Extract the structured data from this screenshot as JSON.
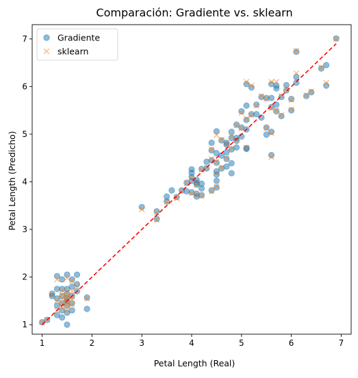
{
  "chart_data": {
    "type": "scatter",
    "title": "Comparación: Gradiente vs. sklearn",
    "xlabel": "Petal Length (Real)",
    "ylabel": "Petal Length (Predicho)",
    "xlim": [
      0.8,
      7.2
    ],
    "ylim": [
      0.8,
      7.3
    ],
    "xticks": [
      1,
      2,
      3,
      4,
      5,
      6,
      7
    ],
    "yticks": [
      1,
      2,
      3,
      4,
      5,
      6,
      7
    ],
    "grid": false,
    "legend_position": "top-left",
    "series": [
      {
        "name": "Gradiente",
        "marker": "circle",
        "color": "#1f77b4",
        "points": [
          [
            1.0,
            1.05
          ],
          [
            1.1,
            1.1
          ],
          [
            1.2,
            1.6
          ],
          [
            1.2,
            1.65
          ],
          [
            1.3,
            1.2
          ],
          [
            1.3,
            1.4
          ],
          [
            1.3,
            1.55
          ],
          [
            1.3,
            1.75
          ],
          [
            1.3,
            2.02
          ],
          [
            1.4,
            1.15
          ],
          [
            1.4,
            1.3
          ],
          [
            1.4,
            1.45
          ],
          [
            1.4,
            1.6
          ],
          [
            1.4,
            1.75
          ],
          [
            1.4,
            1.95
          ],
          [
            1.5,
            1.0
          ],
          [
            1.5,
            1.25
          ],
          [
            1.5,
            1.4
          ],
          [
            1.5,
            1.5
          ],
          [
            1.5,
            1.55
          ],
          [
            1.5,
            1.65
          ],
          [
            1.5,
            1.75
          ],
          [
            1.5,
            2.05
          ],
          [
            1.6,
            1.3
          ],
          [
            1.6,
            1.45
          ],
          [
            1.6,
            1.6
          ],
          [
            1.6,
            1.8
          ],
          [
            1.6,
            1.95
          ],
          [
            1.7,
            1.7
          ],
          [
            1.7,
            1.85
          ],
          [
            1.7,
            2.05
          ],
          [
            1.9,
            1.33
          ],
          [
            1.9,
            1.57
          ],
          [
            3.0,
            3.47
          ],
          [
            3.3,
            3.22
          ],
          [
            3.3,
            3.38
          ],
          [
            3.5,
            3.59
          ],
          [
            3.5,
            3.69
          ],
          [
            3.6,
            3.82
          ],
          [
            3.7,
            3.68
          ],
          [
            3.8,
            3.82
          ],
          [
            3.9,
            3.8
          ],
          [
            3.9,
            3.98
          ],
          [
            4.0,
            3.78
          ],
          [
            4.0,
            4.02
          ],
          [
            4.0,
            4.1
          ],
          [
            4.0,
            4.19
          ],
          [
            4.0,
            4.26
          ],
          [
            4.1,
            3.69
          ],
          [
            4.1,
            3.75
          ],
          [
            4.1,
            3.94
          ],
          [
            4.1,
            3.98
          ],
          [
            4.1,
            4.04
          ],
          [
            4.2,
            3.72
          ],
          [
            4.2,
            3.86
          ],
          [
            4.2,
            3.96
          ],
          [
            4.2,
            4.27
          ],
          [
            4.3,
            4.28
          ],
          [
            4.3,
            4.42
          ],
          [
            4.4,
            3.82
          ],
          [
            4.4,
            4.45
          ],
          [
            4.4,
            4.66
          ],
          [
            4.4,
            4.82
          ],
          [
            4.5,
            3.88
          ],
          [
            4.5,
            4.02
          ],
          [
            4.5,
            4.15
          ],
          [
            4.5,
            4.22
          ],
          [
            4.5,
            4.4
          ],
          [
            4.5,
            4.6
          ],
          [
            4.5,
            5.06
          ],
          [
            4.6,
            4.28
          ],
          [
            4.6,
            4.55
          ],
          [
            4.6,
            4.87
          ],
          [
            4.7,
            4.32
          ],
          [
            4.7,
            4.48
          ],
          [
            4.7,
            4.62
          ],
          [
            4.7,
            4.78
          ],
          [
            4.7,
            4.82
          ],
          [
            4.8,
            4.18
          ],
          [
            4.8,
            4.39
          ],
          [
            4.8,
            4.68
          ],
          [
            4.8,
            4.92
          ],
          [
            4.8,
            5.05
          ],
          [
            4.9,
            4.72
          ],
          [
            4.9,
            4.86
          ],
          [
            4.9,
            4.92
          ],
          [
            4.9,
            5.2
          ],
          [
            5.0,
            4.95
          ],
          [
            5.0,
            5.14
          ],
          [
            5.0,
            5.48
          ],
          [
            5.1,
            4.69
          ],
          [
            5.1,
            4.71
          ],
          [
            5.1,
            5.1
          ],
          [
            5.1,
            5.3
          ],
          [
            5.1,
            5.6
          ],
          [
            5.1,
            6.05
          ],
          [
            5.2,
            5.42
          ],
          [
            5.2,
            5.98
          ],
          [
            5.3,
            5.42
          ],
          [
            5.3,
            5.62
          ],
          [
            5.4,
            5.35
          ],
          [
            5.4,
            5.78
          ],
          [
            5.5,
            4.99
          ],
          [
            5.5,
            5.14
          ],
          [
            5.5,
            5.76
          ],
          [
            5.6,
            4.56
          ],
          [
            5.6,
            5.05
          ],
          [
            5.6,
            5.57
          ],
          [
            5.6,
            5.76
          ],
          [
            5.6,
            6.05
          ],
          [
            5.7,
            5.48
          ],
          [
            5.7,
            5.62
          ],
          [
            5.7,
            5.96
          ],
          [
            5.7,
            6.02
          ],
          [
            5.8,
            5.38
          ],
          [
            5.8,
            5.78
          ],
          [
            5.9,
            5.92
          ],
          [
            5.9,
            6.03
          ],
          [
            6.0,
            5.5
          ],
          [
            6.0,
            5.74
          ],
          [
            6.1,
            6.08
          ],
          [
            6.1,
            6.2
          ],
          [
            6.1,
            6.73
          ],
          [
            6.3,
            5.8
          ],
          [
            6.4,
            5.88
          ],
          [
            6.6,
            6.38
          ],
          [
            6.7,
            6.02
          ],
          [
            6.7,
            6.45
          ],
          [
            6.9,
            7.01
          ]
        ]
      },
      {
        "name": "sklearn",
        "marker": "x",
        "color": "#ff7f0e",
        "points": [
          [
            1.0,
            1.05
          ],
          [
            1.1,
            1.1
          ],
          [
            1.2,
            1.62
          ],
          [
            1.3,
            1.3
          ],
          [
            1.3,
            1.5
          ],
          [
            1.3,
            1.95
          ],
          [
            1.4,
            1.35
          ],
          [
            1.4,
            1.45
          ],
          [
            1.4,
            1.55
          ],
          [
            1.4,
            1.62
          ],
          [
            1.4,
            1.72
          ],
          [
            1.5,
            1.3
          ],
          [
            1.5,
            1.4
          ],
          [
            1.5,
            1.45
          ],
          [
            1.5,
            1.5
          ],
          [
            1.5,
            1.55
          ],
          [
            1.5,
            1.6
          ],
          [
            1.5,
            1.68
          ],
          [
            1.5,
            1.98
          ],
          [
            1.6,
            1.42
          ],
          [
            1.6,
            1.52
          ],
          [
            1.6,
            1.58
          ],
          [
            1.6,
            1.7
          ],
          [
            1.6,
            1.92
          ],
          [
            1.7,
            1.8
          ],
          [
            1.9,
            1.55
          ],
          [
            3.0,
            3.42
          ],
          [
            3.3,
            3.2
          ],
          [
            3.3,
            3.35
          ],
          [
            3.5,
            3.58
          ],
          [
            3.7,
            3.65
          ],
          [
            3.8,
            3.8
          ],
          [
            3.9,
            3.97
          ],
          [
            4.0,
            3.76
          ],
          [
            4.0,
            4.08
          ],
          [
            4.1,
            3.72
          ],
          [
            4.1,
            3.95
          ],
          [
            4.2,
            3.7
          ],
          [
            4.2,
            4.25
          ],
          [
            4.3,
            4.3
          ],
          [
            4.4,
            3.8
          ],
          [
            4.4,
            4.48
          ],
          [
            4.4,
            4.68
          ],
          [
            4.5,
            3.9
          ],
          [
            4.5,
            4.18
          ],
          [
            4.5,
            4.42
          ],
          [
            4.5,
            4.98
          ],
          [
            4.6,
            4.3
          ],
          [
            4.6,
            4.88
          ],
          [
            4.7,
            4.5
          ],
          [
            4.7,
            4.8
          ],
          [
            4.8,
            4.7
          ],
          [
            4.8,
            4.95
          ],
          [
            4.9,
            4.88
          ],
          [
            4.9,
            5.18
          ],
          [
            5.0,
            5.12
          ],
          [
            5.0,
            5.45
          ],
          [
            5.1,
            4.72
          ],
          [
            5.1,
            5.32
          ],
          [
            5.1,
            6.1
          ],
          [
            5.2,
            5.4
          ],
          [
            5.2,
            6.02
          ],
          [
            5.3,
            5.6
          ],
          [
            5.4,
            5.8
          ],
          [
            5.5,
            5.12
          ],
          [
            5.5,
            5.74
          ],
          [
            5.6,
            4.52
          ],
          [
            5.6,
            5.02
          ],
          [
            5.6,
            5.54
          ],
          [
            5.6,
            6.1
          ],
          [
            5.7,
            5.5
          ],
          [
            5.7,
            6.1
          ],
          [
            5.8,
            5.4
          ],
          [
            5.8,
            5.8
          ],
          [
            5.9,
            5.95
          ],
          [
            6.0,
            5.52
          ],
          [
            6.0,
            5.72
          ],
          [
            6.1,
            6.28
          ],
          [
            6.1,
            6.75
          ],
          [
            6.3,
            5.82
          ],
          [
            6.4,
            5.9
          ],
          [
            6.6,
            6.4
          ],
          [
            6.7,
            6.08
          ],
          [
            6.9,
            7.0
          ]
        ]
      }
    ],
    "reference_line": {
      "style": "dashed",
      "color": "#ff0000",
      "from": [
        1.0,
        1.0
      ],
      "to": [
        6.9,
        6.9
      ]
    }
  }
}
